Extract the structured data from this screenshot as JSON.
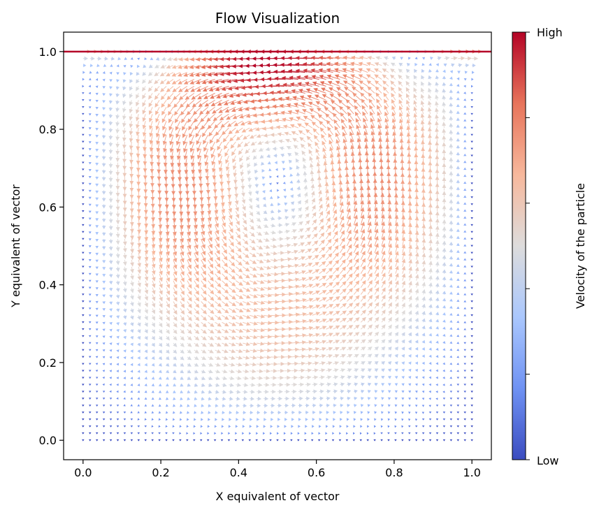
{
  "chart_data": {
    "type": "quiver",
    "title": "Flow Visualization",
    "xlabel": "X equivalent of vector",
    "ylabel": "Y equivalent of vector",
    "xlim": [
      -0.05,
      1.05
    ],
    "ylim": [
      -0.05,
      1.05
    ],
    "x_ticks": [
      0.0,
      0.2,
      0.4,
      0.6,
      0.8,
      1.0
    ],
    "x_tick_labels": [
      "0.0",
      "0.2",
      "0.4",
      "0.6",
      "0.8",
      "1.0"
    ],
    "y_ticks": [
      0.0,
      0.2,
      0.4,
      0.6,
      0.8,
      1.0
    ],
    "y_tick_labels": [
      "0.0",
      "0.2",
      "0.4",
      "0.6",
      "0.8",
      "1.0"
    ],
    "grid": false,
    "field": {
      "description": "lid-driven cavity flow, lid moving in +x at y = 1.0",
      "x_range": [
        0.0,
        1.0
      ],
      "y_range": [
        0.0,
        1.0
      ],
      "vortex_center": [
        0.53,
        0.6
      ],
      "lid_velocity": 1.0
    },
    "colorbar": {
      "label": "Velocity of the particle",
      "min_label": "Low",
      "max_label": "High",
      "colormap": "coolwarm",
      "colors": [
        "#3b4cc0",
        "#6f92f3",
        "#aac7fd",
        "#dddcdc",
        "#f7b89c",
        "#e7745b",
        "#b40426"
      ]
    }
  }
}
